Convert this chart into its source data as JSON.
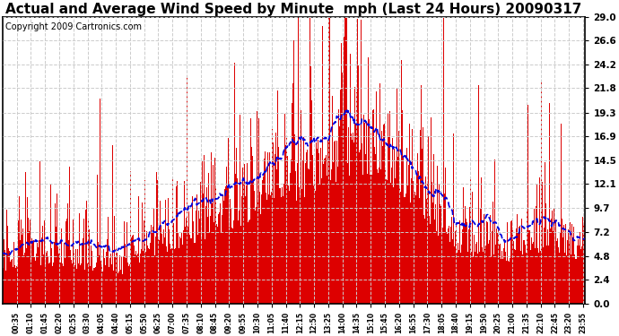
{
  "title": "Actual and Average Wind Speed by Minute  mph (Last 24 Hours) 20090317",
  "copyright": "Copyright 2009 Cartronics.com",
  "yticks": [
    0.0,
    2.4,
    4.8,
    7.2,
    9.7,
    12.1,
    14.5,
    16.9,
    19.3,
    21.8,
    24.2,
    26.6,
    29.0
  ],
  "ymin": 0.0,
  "ymax": 29.0,
  "bar_color": "#dd0000",
  "avg_color": "#0000dd",
  "background_color": "#ffffff",
  "plot_bg_color": "#ffffff",
  "grid_color": "#cccccc",
  "title_fontsize": 11,
  "copyright_fontsize": 7,
  "figwidth": 6.9,
  "figheight": 3.75,
  "dpi": 100
}
